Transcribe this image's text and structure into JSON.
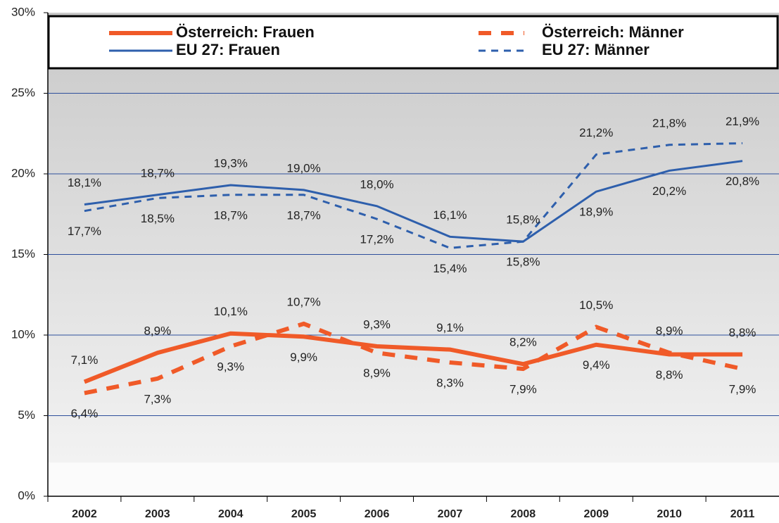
{
  "chart_data": {
    "type": "line",
    "categories": [
      "2002",
      "2003",
      "2004",
      "2005",
      "2006",
      "2007",
      "2008",
      "2009",
      "2010",
      "2011"
    ],
    "series": [
      {
        "name": "Österreich: Frauen",
        "color": "#f05a28",
        "style": "solid",
        "width": 6,
        "values": [
          7.1,
          8.9,
          10.1,
          9.9,
          9.3,
          9.1,
          8.2,
          9.4,
          8.8,
          8.8
        ],
        "value_labels": [
          "7,1%",
          "8,9%",
          "10,1%",
          "9,9%",
          "9,3%",
          "9,1%",
          "8,2%",
          "9,4%",
          "8,8%",
          "8,8%"
        ]
      },
      {
        "name": "Österreich: Männer",
        "color": "#f05a28",
        "style": "dashed",
        "width": 6,
        "values": [
          6.4,
          7.3,
          9.3,
          10.7,
          8.9,
          8.3,
          7.9,
          10.5,
          8.9,
          7.9
        ],
        "value_labels": [
          "6,4%",
          "7,3%",
          "9,3%",
          "10,7%",
          "8,9%",
          "8,3%",
          "7,9%",
          "10,5%",
          "8,9%",
          "7,9%"
        ]
      },
      {
        "name": "EU 27: Frauen",
        "color": "#2e5fac",
        "style": "solid",
        "width": 3,
        "values": [
          18.1,
          18.7,
          19.3,
          19.0,
          18.0,
          16.1,
          15.8,
          18.9,
          20.2,
          20.8
        ],
        "value_labels": [
          "18,1%",
          "18,7%",
          "19,3%",
          "19,0%",
          "18,0%",
          "16,1%",
          "15,8%",
          "18,9%",
          "20,2%",
          "20,8%"
        ]
      },
      {
        "name": "EU 27: Männer",
        "color": "#2e5fac",
        "style": "dashed",
        "width": 3,
        "values": [
          17.7,
          18.5,
          18.7,
          18.7,
          17.2,
          15.4,
          15.8,
          21.2,
          21.8,
          21.9
        ],
        "value_labels": [
          "17,7%",
          "18,5%",
          "18,7%",
          "18,7%",
          "17,2%",
          "15,4%",
          "15,8%",
          "21,2%",
          "21,8%",
          "21,9%"
        ]
      }
    ],
    "ylim": [
      0,
      30
    ],
    "yticks": [
      {
        "value": 0,
        "label": "0%"
      },
      {
        "value": 5,
        "label": "5%"
      },
      {
        "value": 10,
        "label": "10%"
      },
      {
        "value": 15,
        "label": "15%"
      },
      {
        "value": 20,
        "label": "20%"
      },
      {
        "value": 25,
        "label": "25%"
      },
      {
        "value": 30,
        "label": "30%"
      }
    ],
    "grid": true,
    "legend": "top"
  }
}
